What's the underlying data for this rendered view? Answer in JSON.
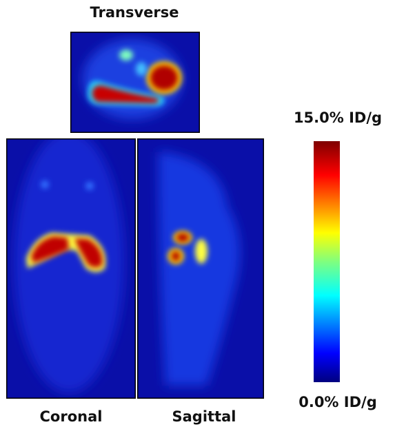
{
  "panels": {
    "transverse": {
      "label": "Transverse"
    },
    "coronal": {
      "label": "Coronal"
    },
    "sagittal": {
      "label": "Sagittal"
    }
  },
  "colorbar": {
    "max_label": "15.0% ID/g",
    "min_label": "0.0% ID/g"
  }
}
